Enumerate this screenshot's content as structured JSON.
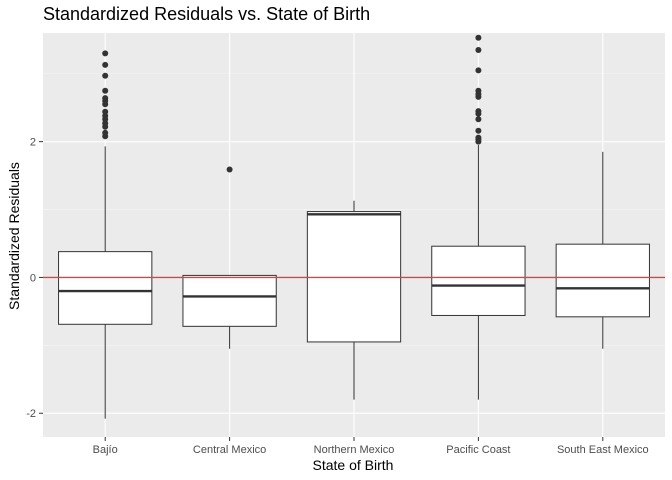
{
  "chart_data": {
    "type": "boxplot",
    "title": "Standardized Residuals vs. State of Birth",
    "xlabel": "State of Birth",
    "ylabel": "Standardized Residuals",
    "ylim": [
      -2.35,
      3.6
    ],
    "y_ticks": [
      -2,
      0,
      2
    ],
    "y_tick_labels": [
      "-2",
      "0",
      "2"
    ],
    "reference_line": {
      "y": 0,
      "color": "#ff3333"
    },
    "grid": true,
    "panel_background": "#ebebeb",
    "categories": [
      "Bajío",
      "Central Mexico",
      "Northern Mexico",
      "Pacific Coast",
      "South East Mexico"
    ],
    "boxes": [
      {
        "category": "Bajío",
        "whisker_low": -2.08,
        "q1": -0.69,
        "median": -0.2,
        "q3": 0.38,
        "whisker_high": 1.93,
        "outliers": [
          2.08,
          2.13,
          2.22,
          2.27,
          2.33,
          2.38,
          2.44,
          2.55,
          2.6,
          2.64,
          2.75,
          2.97,
          3.13,
          3.3
        ]
      },
      {
        "category": "Central Mexico",
        "whisker_low": -1.05,
        "q1": -0.72,
        "median": -0.28,
        "q3": 0.03,
        "whisker_high": 0.03,
        "outliers": [
          1.59
        ]
      },
      {
        "category": "Northern Mexico",
        "whisker_low": -1.8,
        "q1": -0.95,
        "median": 0.93,
        "q3": 0.97,
        "whisker_high": 1.13,
        "outliers": []
      },
      {
        "category": "Pacific Coast",
        "whisker_low": -1.8,
        "q1": -0.56,
        "median": -0.12,
        "q3": 0.46,
        "whisker_high": 1.95,
        "outliers": [
          2.0,
          2.03,
          2.06,
          2.16,
          2.33,
          2.41,
          2.45,
          2.66,
          2.7,
          2.75,
          3.05,
          3.35,
          3.53
        ]
      },
      {
        "category": "South East Mexico",
        "whisker_low": -1.05,
        "q1": -0.58,
        "median": -0.16,
        "q3": 0.49,
        "whisker_high": 1.85,
        "outliers": []
      }
    ]
  }
}
